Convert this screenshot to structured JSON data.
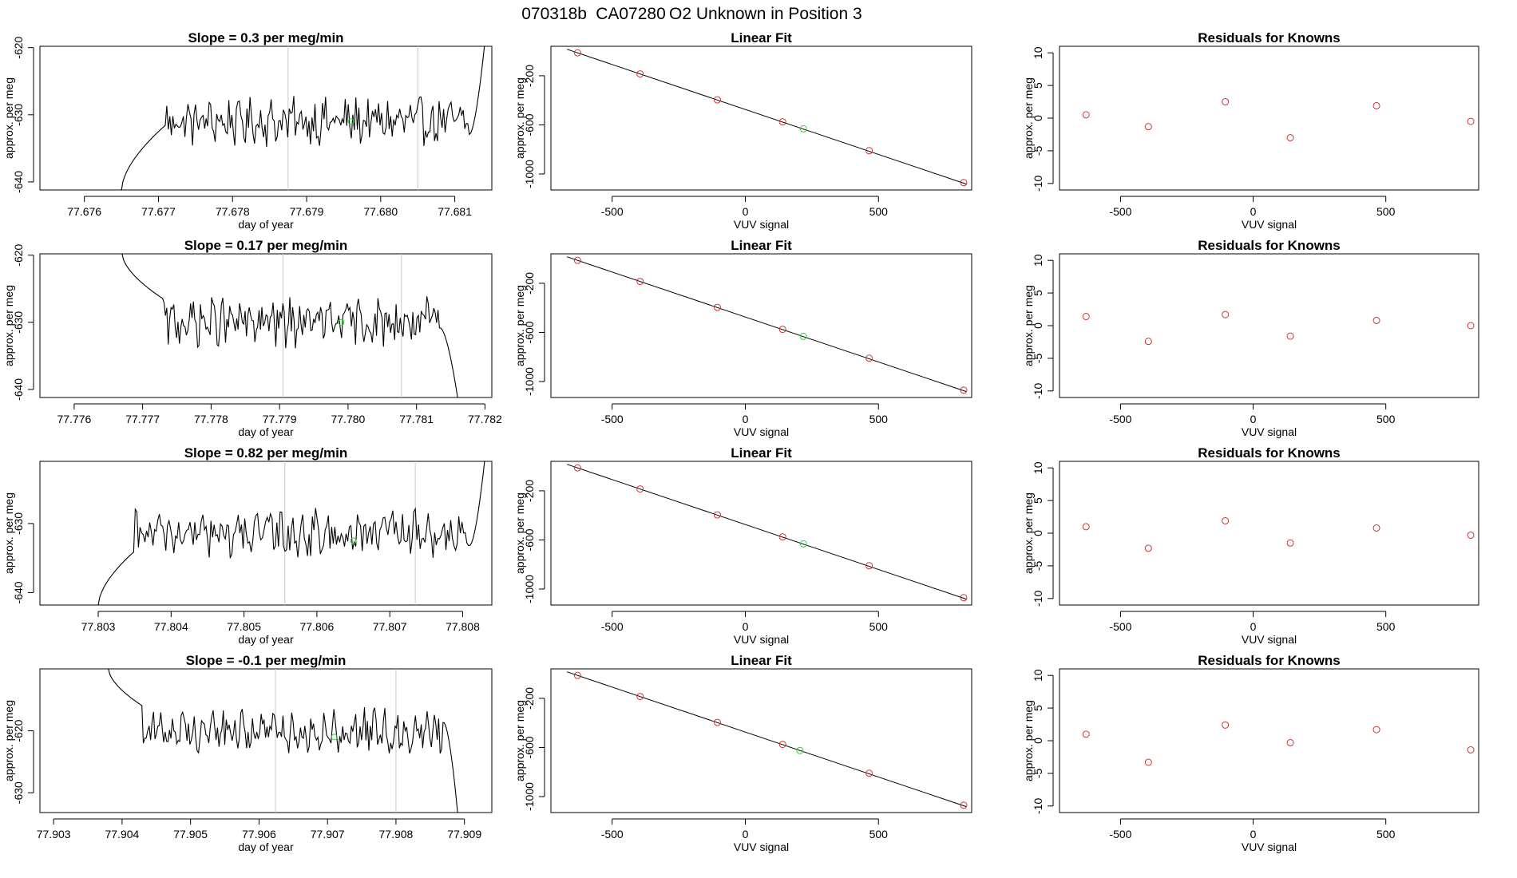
{
  "figure_title": {
    "date": "070318b",
    "sample": "CA07280",
    "description": "O2 Unknown in Position  3"
  },
  "colors": {
    "line": "#000000",
    "frame": "#000000",
    "vline": "#c8c8c8",
    "known_points": "#cd3333",
    "unknown_point": "#33cc33"
  },
  "chart_data": [
    {
      "type": "line",
      "row": 1,
      "title": "Slope =  0.3  per meg/min",
      "xlabel": "day of year",
      "ylabel": "approx. per meg",
      "xlim": [
        77.6754,
        77.6815
      ],
      "ylim": [
        -641.2,
        -619.8
      ],
      "xticks": [
        77.676,
        77.677,
        77.678,
        77.679,
        77.68,
        77.681
      ],
      "xtick_labels": [
        "77.676",
        "77.677",
        "77.678",
        "77.679",
        "77.680",
        "77.681"
      ],
      "yticks": [
        -640,
        -630,
        -620
      ],
      "ytick_labels": [
        "-640",
        "-630",
        "-620"
      ],
      "vlines": [
        77.67875,
        77.6805
      ],
      "start": 77.6765,
      "end": 77.6814,
      "rise_start": -641.2,
      "rise_end": -631.5,
      "rise_width": 0.0006,
      "base_mean": -631,
      "end_ramp": 0.0002,
      "end_target": -619.8,
      "marker": {
        "x": 77.6796,
        "y": -631
      }
    },
    {
      "type": "scatter",
      "row": 1,
      "title": "Linear Fit",
      "xlabel": "VUV signal",
      "ylabel": "approx. per meg",
      "xlim": [
        -730,
        850
      ],
      "ylim": [
        -1130,
        40
      ],
      "xticks": [
        -500,
        0,
        500
      ],
      "xtick_labels": [
        "-500",
        "0",
        "500"
      ],
      "yticks": [
        -1000,
        -600,
        -200
      ],
      "ytick_labels": [
        "-1000",
        "-600",
        "-200"
      ],
      "fit_line": {
        "x": [
          -670,
          830
        ],
        "y": [
          16,
          -1082
        ]
      },
      "known_points": [
        {
          "x": -630,
          "y": -13
        },
        {
          "x": -395,
          "y": -185
        },
        {
          "x": -105,
          "y": -396
        },
        {
          "x": 140,
          "y": -575
        },
        {
          "x": 465,
          "y": -810
        },
        {
          "x": 820,
          "y": -1070
        }
      ],
      "unknown_point": {
        "x": 218,
        "y": -632
      }
    },
    {
      "type": "scatter",
      "row": 1,
      "title": "Residuals for Knowns",
      "xlabel": "VUV signal",
      "ylabel": "approx. per meg",
      "xlim": [
        -730,
        850
      ],
      "ylim": [
        -11,
        11
      ],
      "xticks": [
        -500,
        0,
        500
      ],
      "xtick_labels": [
        "-500",
        "0",
        "500"
      ],
      "yticks": [
        -10,
        -5,
        0,
        5,
        10
      ],
      "ytick_labels": [
        "-10",
        "-5",
        "0",
        "5",
        "10"
      ],
      "known_points": [
        {
          "x": -630,
          "y": 0.5
        },
        {
          "x": -395,
          "y": -1.3
        },
        {
          "x": -105,
          "y": 2.5
        },
        {
          "x": 140,
          "y": -3.0
        },
        {
          "x": 465,
          "y": 1.9
        },
        {
          "x": 820,
          "y": -0.5
        }
      ]
    },
    {
      "type": "line",
      "row": 2,
      "title": "Slope =  0.17  per meg/min",
      "xlabel": "day of year",
      "ylabel": "approx. per meg",
      "xlim": [
        77.7755,
        77.7821
      ],
      "ylim": [
        -641.2,
        -619.8
      ],
      "xticks": [
        77.776,
        77.777,
        77.778,
        77.779,
        77.78,
        77.781,
        77.782
      ],
      "xtick_labels": [
        "77.776",
        "77.777",
        "77.778",
        "77.779",
        "77.780",
        "77.781",
        "77.782"
      ],
      "yticks": [
        -640,
        -630,
        -620
      ],
      "ytick_labels": [
        "-640",
        "-630",
        "-620"
      ],
      "vlines": [
        77.77905,
        77.78078
      ],
      "start": 77.7767,
      "end": 77.7816,
      "rise_start": -619.8,
      "rise_end": -626.5,
      "rise_width": 0.0006,
      "base_mean": -630,
      "end_ramp": 0.00025,
      "end_target": -641.2,
      "marker": {
        "x": 77.7799,
        "y": -630
      }
    },
    {
      "type": "scatter",
      "row": 2,
      "title": "Linear Fit",
      "xlabel": "VUV signal",
      "ylabel": "approx. per meg",
      "xlim": [
        -730,
        850
      ],
      "ylim": [
        -1130,
        40
      ],
      "xticks": [
        -500,
        0,
        500
      ],
      "xtick_labels": [
        "-500",
        "0",
        "500"
      ],
      "yticks": [
        -1000,
        -600,
        -200
      ],
      "ytick_labels": [
        "-1000",
        "-600",
        "-200"
      ],
      "fit_line": {
        "x": [
          -670,
          830
        ],
        "y": [
          16,
          -1082
        ]
      },
      "known_points": [
        {
          "x": -630,
          "y": -13
        },
        {
          "x": -395,
          "y": -185
        },
        {
          "x": -105,
          "y": -396
        },
        {
          "x": 140,
          "y": -575
        },
        {
          "x": 465,
          "y": -810
        },
        {
          "x": 820,
          "y": -1070
        }
      ],
      "unknown_point": {
        "x": 218,
        "y": -632
      }
    },
    {
      "type": "scatter",
      "row": 2,
      "title": "Residuals for Knowns",
      "xlabel": "VUV signal",
      "ylabel": "approx. per meg",
      "xlim": [
        -730,
        850
      ],
      "ylim": [
        -11,
        11
      ],
      "xticks": [
        -500,
        0,
        500
      ],
      "xtick_labels": [
        "-500",
        "0",
        "500"
      ],
      "yticks": [
        -10,
        -5,
        0,
        5,
        10
      ],
      "ytick_labels": [
        "-10",
        "-5",
        "0",
        "5",
        "10"
      ],
      "known_points": [
        {
          "x": -630,
          "y": 1.4
        },
        {
          "x": -395,
          "y": -2.4
        },
        {
          "x": -105,
          "y": 1.7
        },
        {
          "x": 140,
          "y": -1.6
        },
        {
          "x": 465,
          "y": 0.8
        },
        {
          "x": 820,
          "y": 0.0
        }
      ]
    },
    {
      "type": "line",
      "row": 3,
      "title": "Slope =  0.82  per meg/min",
      "xlabel": "day of year",
      "ylabel": "approx. per meg",
      "xlim": [
        77.8022,
        77.8084
      ],
      "ylim": [
        -641.8,
        -621.0
      ],
      "xticks": [
        77.803,
        77.804,
        77.805,
        77.806,
        77.807,
        77.808
      ],
      "xtick_labels": [
        "77.803",
        "77.804",
        "77.805",
        "77.806",
        "77.807",
        "77.808"
      ],
      "yticks": [
        -640,
        -630
      ],
      "ytick_labels": [
        "-640",
        "-630"
      ],
      "vlines": [
        77.80556,
        77.80735
      ],
      "start": 77.803,
      "end": 77.8083,
      "rise_start": -641.8,
      "rise_end": -634,
      "rise_width": 0.0005,
      "base_mean": -631.5,
      "end_ramp": 0.0002,
      "end_target": -621.0,
      "marker": {
        "x": 77.8065,
        "y": -632.5
      }
    },
    {
      "type": "scatter",
      "row": 3,
      "title": "Linear Fit",
      "xlabel": "VUV signal",
      "ylabel": "approx. per meg",
      "xlim": [
        -730,
        850
      ],
      "ylim": [
        -1130,
        40
      ],
      "xticks": [
        -500,
        0,
        500
      ],
      "xtick_labels": [
        "-500",
        "0",
        "500"
      ],
      "yticks": [
        -1000,
        -600,
        -200
      ],
      "ytick_labels": [
        "-1000",
        "-600",
        "-200"
      ],
      "fit_line": {
        "x": [
          -670,
          830
        ],
        "y": [
          16,
          -1082
        ]
      },
      "known_points": [
        {
          "x": -630,
          "y": -13
        },
        {
          "x": -395,
          "y": -185
        },
        {
          "x": -105,
          "y": -396
        },
        {
          "x": 140,
          "y": -575
        },
        {
          "x": 465,
          "y": -810
        },
        {
          "x": 820,
          "y": -1070
        }
      ],
      "unknown_point": {
        "x": 218,
        "y": -632
      }
    },
    {
      "type": "scatter",
      "row": 3,
      "title": "Residuals for Knowns",
      "xlabel": "VUV signal",
      "ylabel": "approx. per meg",
      "xlim": [
        -730,
        850
      ],
      "ylim": [
        -11,
        11
      ],
      "xticks": [
        -500,
        0,
        500
      ],
      "xtick_labels": [
        "-500",
        "0",
        "500"
      ],
      "yticks": [
        -10,
        -5,
        0,
        5,
        10
      ],
      "ytick_labels": [
        "-10",
        "-5",
        "0",
        "5",
        "10"
      ],
      "known_points": [
        {
          "x": -630,
          "y": 1.0
        },
        {
          "x": -395,
          "y": -2.3
        },
        {
          "x": -105,
          "y": 1.9
        },
        {
          "x": 140,
          "y": -1.5
        },
        {
          "x": 465,
          "y": 0.8
        },
        {
          "x": 820,
          "y": -0.3
        }
      ]
    },
    {
      "type": "line",
      "row": 4,
      "title": "Slope =  -0.1  per meg/min",
      "xlabel": "day of year",
      "ylabel": "approx. per meg",
      "xlim": [
        77.9028,
        77.9094
      ],
      "ylim": [
        -633.2,
        -610.0
      ],
      "xticks": [
        77.903,
        77.904,
        77.905,
        77.906,
        77.907,
        77.908,
        77.909
      ],
      "xtick_labels": [
        "77.903",
        "77.904",
        "77.905",
        "77.906",
        "77.907",
        "77.908",
        "77.909"
      ],
      "yticks": [
        -630,
        -620
      ],
      "ytick_labels": [
        "-630",
        "-620"
      ],
      "vlines": [
        77.90624,
        77.908
      ],
      "start": 77.9038,
      "end": 77.9089,
      "rise_start": -610.0,
      "rise_end": -616,
      "rise_width": 0.0005,
      "base_mean": -620,
      "end_ramp": 0.0002,
      "end_target": -633.2,
      "marker": {
        "x": 77.9071,
        "y": -621
      }
    },
    {
      "type": "scatter",
      "row": 4,
      "title": "Linear Fit",
      "xlabel": "VUV signal",
      "ylabel": "approx. per meg",
      "xlim": [
        -730,
        850
      ],
      "ylim": [
        -1130,
        40
      ],
      "xticks": [
        -500,
        0,
        500
      ],
      "xtick_labels": [
        "-500",
        "0",
        "500"
      ],
      "yticks": [
        -1000,
        -600,
        -200
      ],
      "ytick_labels": [
        "-1000",
        "-600",
        "-200"
      ],
      "fit_line": {
        "x": [
          -670,
          830
        ],
        "y": [
          16,
          -1082
        ]
      },
      "known_points": [
        {
          "x": -630,
          "y": -13
        },
        {
          "x": -395,
          "y": -185
        },
        {
          "x": -105,
          "y": -396
        },
        {
          "x": 140,
          "y": -575
        },
        {
          "x": 465,
          "y": -810
        },
        {
          "x": 820,
          "y": -1070
        }
      ],
      "unknown_point": {
        "x": 205,
        "y": -625
      }
    },
    {
      "type": "scatter",
      "row": 4,
      "title": "Residuals for Knowns",
      "xlabel": "VUV signal",
      "ylabel": "approx. per meg",
      "xlim": [
        -730,
        850
      ],
      "ylim": [
        -11,
        11
      ],
      "xticks": [
        -500,
        0,
        500
      ],
      "xtick_labels": [
        "-500",
        "0",
        "500"
      ],
      "yticks": [
        -10,
        -5,
        0,
        5,
        10
      ],
      "ytick_labels": [
        "-10",
        "-5",
        "0",
        "5",
        "10"
      ],
      "known_points": [
        {
          "x": -630,
          "y": 1.0
        },
        {
          "x": -395,
          "y": -3.3
        },
        {
          "x": -105,
          "y": 2.4
        },
        {
          "x": 140,
          "y": -0.3
        },
        {
          "x": 465,
          "y": 1.7
        },
        {
          "x": 820,
          "y": -1.4
        }
      ]
    }
  ]
}
